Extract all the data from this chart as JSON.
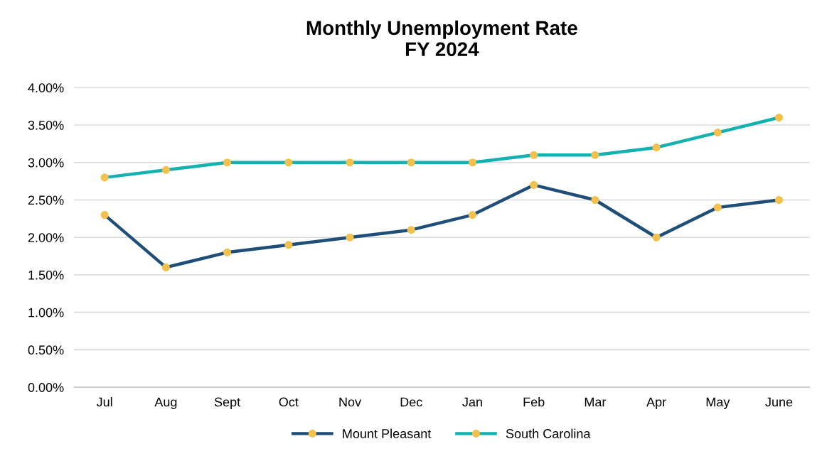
{
  "chart_data": {
    "type": "line",
    "title": "Monthly Unemployment Rate\nFY 2024",
    "categories": [
      "Jul",
      "Aug",
      "Sept",
      "Oct",
      "Nov",
      "Dec",
      "Jan",
      "Feb",
      "Mar",
      "Apr",
      "May",
      "June"
    ],
    "series": [
      {
        "name": "Mount Pleasant",
        "color": "#1f4e79",
        "values": [
          2.3,
          1.6,
          1.8,
          1.9,
          2.0,
          2.1,
          2.3,
          2.7,
          2.5,
          2.0,
          2.4,
          2.5
        ]
      },
      {
        "name": "South Carolina",
        "color": "#13b2b0",
        "values": [
          2.8,
          2.9,
          3.0,
          3.0,
          3.0,
          3.0,
          3.0,
          3.1,
          3.1,
          3.2,
          3.4,
          3.6
        ]
      }
    ],
    "ylim": [
      0,
      4
    ],
    "yticks": [
      {
        "value": 0,
        "label": "0.00%"
      },
      {
        "value": 0.5,
        "label": "0.50%"
      },
      {
        "value": 1,
        "label": "1.00%"
      },
      {
        "value": 1.5,
        "label": "1.50%"
      },
      {
        "value": 2,
        "label": "2.00%"
      },
      {
        "value": 2.5,
        "label": "2.50%"
      },
      {
        "value": 3,
        "label": "3.00%"
      },
      {
        "value": 3.5,
        "label": "3.50%"
      },
      {
        "value": 4,
        "label": "4.00%"
      }
    ],
    "grid": "y",
    "legend": "bottom",
    "marker": "circle",
    "line_style": "solid"
  }
}
